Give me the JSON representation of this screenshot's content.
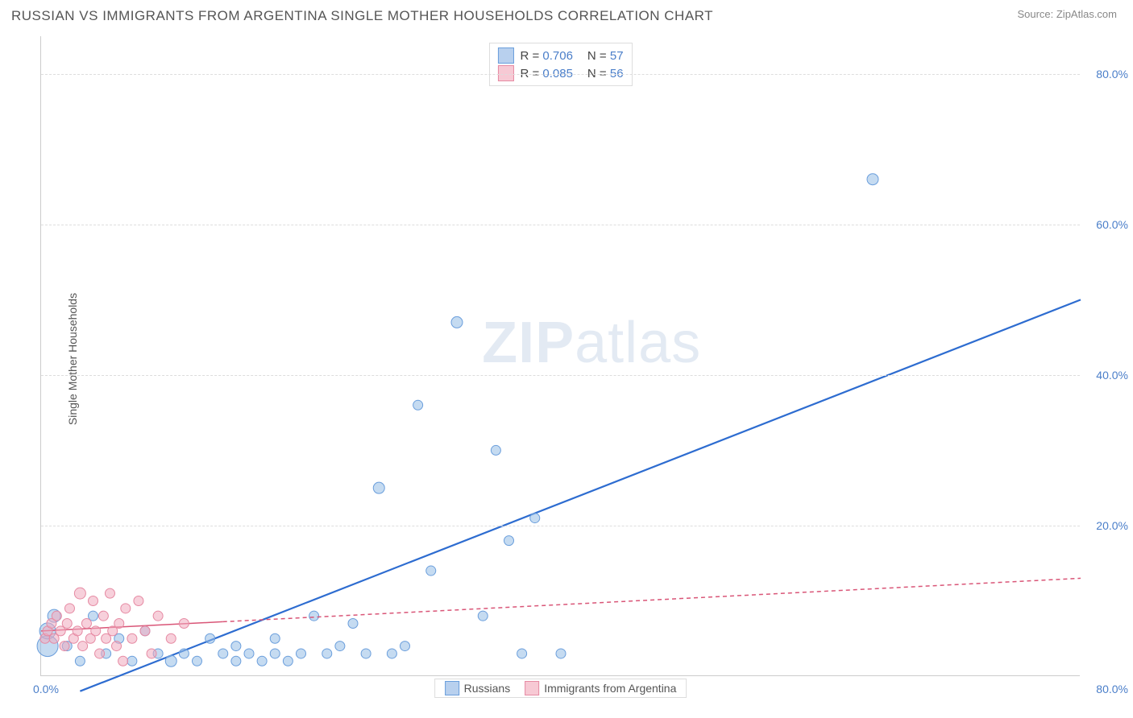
{
  "header": {
    "title": "RUSSIAN VS IMMIGRANTS FROM ARGENTINA SINGLE MOTHER HOUSEHOLDS CORRELATION CHART",
    "source_prefix": "Source: ",
    "source": "ZipAtlas.com"
  },
  "chart": {
    "type": "scatter",
    "ylabel": "Single Mother Households",
    "watermark_bold": "ZIP",
    "watermark_light": "atlas",
    "xlim": [
      0,
      80
    ],
    "ylim": [
      0,
      85
    ],
    "yticks": [
      {
        "value": 20,
        "label": "20.0%"
      },
      {
        "value": 40,
        "label": "40.0%"
      },
      {
        "value": 60,
        "label": "60.0%"
      },
      {
        "value": 80,
        "label": "80.0%"
      }
    ],
    "xtick_left": "0.0%",
    "xtick_right": "80.0%",
    "background_color": "#ffffff",
    "grid_color": "#dddddd",
    "legend_top": [
      {
        "swatch_fill": "#b8d0ee",
        "swatch_border": "#6a9edc",
        "r_label": "R = ",
        "r_value": "0.706",
        "n_label": "N = ",
        "n_value": "57"
      },
      {
        "swatch_fill": "#f7c9d4",
        "swatch_border": "#e68aa3",
        "r_label": "R = ",
        "r_value": "0.085",
        "n_label": "N = ",
        "n_value": "56"
      }
    ],
    "legend_bottom": [
      {
        "swatch_fill": "#b8d0ee",
        "swatch_border": "#6a9edc",
        "label": "Russians"
      },
      {
        "swatch_fill": "#f7c9d4",
        "swatch_border": "#e68aa3",
        "label": "Immigrants from Argentina"
      }
    ],
    "series": [
      {
        "name": "russians",
        "marker_fill": "rgba(150,190,230,0.55)",
        "marker_stroke": "#6a9edc",
        "trend_stroke": "#2d6cd0",
        "trend_width": 2.2,
        "trend_dash": "none",
        "trend_start": {
          "x": 3,
          "y": -2
        },
        "trend_end": {
          "x": 80,
          "y": 50
        },
        "points": [
          {
            "x": 0.5,
            "y": 4,
            "r": 13
          },
          {
            "x": 0.5,
            "y": 6,
            "r": 10
          },
          {
            "x": 1,
            "y": 8,
            "r": 8
          },
          {
            "x": 2,
            "y": 4,
            "r": 6
          },
          {
            "x": 3,
            "y": 2,
            "r": 6
          },
          {
            "x": 4,
            "y": 8,
            "r": 6
          },
          {
            "x": 5,
            "y": 3,
            "r": 6
          },
          {
            "x": 6,
            "y": 5,
            "r": 6
          },
          {
            "x": 7,
            "y": 2,
            "r": 6
          },
          {
            "x": 8,
            "y": 6,
            "r": 6
          },
          {
            "x": 9,
            "y": 3,
            "r": 6
          },
          {
            "x": 10,
            "y": 2,
            "r": 7
          },
          {
            "x": 11,
            "y": 3,
            "r": 6
          },
          {
            "x": 12,
            "y": 2,
            "r": 6
          },
          {
            "x": 13,
            "y": 5,
            "r": 6
          },
          {
            "x": 14,
            "y": 3,
            "r": 6
          },
          {
            "x": 15,
            "y": 2,
            "r": 6
          },
          {
            "x": 15,
            "y": 4,
            "r": 6
          },
          {
            "x": 16,
            "y": 3,
            "r": 6
          },
          {
            "x": 17,
            "y": 2,
            "r": 6
          },
          {
            "x": 18,
            "y": 3,
            "r": 6
          },
          {
            "x": 18,
            "y": 5,
            "r": 6
          },
          {
            "x": 19,
            "y": 2,
            "r": 6
          },
          {
            "x": 20,
            "y": 3,
            "r": 6
          },
          {
            "x": 21,
            "y": 8,
            "r": 6
          },
          {
            "x": 22,
            "y": 3,
            "r": 6
          },
          {
            "x": 23,
            "y": 4,
            "r": 6
          },
          {
            "x": 24,
            "y": 7,
            "r": 6
          },
          {
            "x": 25,
            "y": 3,
            "r": 6
          },
          {
            "x": 26,
            "y": 25,
            "r": 7
          },
          {
            "x": 27,
            "y": 3,
            "r": 6
          },
          {
            "x": 28,
            "y": 4,
            "r": 6
          },
          {
            "x": 29,
            "y": 36,
            "r": 6
          },
          {
            "x": 30,
            "y": 14,
            "r": 6
          },
          {
            "x": 32,
            "y": 47,
            "r": 7
          },
          {
            "x": 34,
            "y": 8,
            "r": 6
          },
          {
            "x": 35,
            "y": 30,
            "r": 6
          },
          {
            "x": 36,
            "y": 18,
            "r": 6
          },
          {
            "x": 37,
            "y": 3,
            "r": 6
          },
          {
            "x": 38,
            "y": 21,
            "r": 6
          },
          {
            "x": 40,
            "y": 3,
            "r": 6
          },
          {
            "x": 64,
            "y": 66,
            "r": 7
          }
        ]
      },
      {
        "name": "argentina",
        "marker_fill": "rgba(240,170,190,0.55)",
        "marker_stroke": "#e68aa3",
        "trend_stroke": "#d95577",
        "trend_width": 1.5,
        "trend_dash": "5,4",
        "trend_solid_end_x": 14,
        "trend_start": {
          "x": 0,
          "y": 6
        },
        "trend_end": {
          "x": 80,
          "y": 13
        },
        "points": [
          {
            "x": 0.3,
            "y": 5,
            "r": 6
          },
          {
            "x": 0.5,
            "y": 6,
            "r": 6
          },
          {
            "x": 0.8,
            "y": 7,
            "r": 6
          },
          {
            "x": 1,
            "y": 5,
            "r": 6
          },
          {
            "x": 1.2,
            "y": 8,
            "r": 6
          },
          {
            "x": 1.5,
            "y": 6,
            "r": 6
          },
          {
            "x": 1.8,
            "y": 4,
            "r": 6
          },
          {
            "x": 2,
            "y": 7,
            "r": 6
          },
          {
            "x": 2.2,
            "y": 9,
            "r": 6
          },
          {
            "x": 2.5,
            "y": 5,
            "r": 6
          },
          {
            "x": 2.8,
            "y": 6,
            "r": 6
          },
          {
            "x": 3,
            "y": 11,
            "r": 7
          },
          {
            "x": 3.2,
            "y": 4,
            "r": 6
          },
          {
            "x": 3.5,
            "y": 7,
            "r": 6
          },
          {
            "x": 3.8,
            "y": 5,
            "r": 6
          },
          {
            "x": 4,
            "y": 10,
            "r": 6
          },
          {
            "x": 4.2,
            "y": 6,
            "r": 6
          },
          {
            "x": 4.5,
            "y": 3,
            "r": 6
          },
          {
            "x": 4.8,
            "y": 8,
            "r": 6
          },
          {
            "x": 5,
            "y": 5,
            "r": 6
          },
          {
            "x": 5.3,
            "y": 11,
            "r": 6
          },
          {
            "x": 5.5,
            "y": 6,
            "r": 6
          },
          {
            "x": 5.8,
            "y": 4,
            "r": 6
          },
          {
            "x": 6,
            "y": 7,
            "r": 6
          },
          {
            "x": 6.3,
            "y": 2,
            "r": 6
          },
          {
            "x": 6.5,
            "y": 9,
            "r": 6
          },
          {
            "x": 7,
            "y": 5,
            "r": 6
          },
          {
            "x": 7.5,
            "y": 10,
            "r": 6
          },
          {
            "x": 8,
            "y": 6,
            "r": 6
          },
          {
            "x": 8.5,
            "y": 3,
            "r": 6
          },
          {
            "x": 9,
            "y": 8,
            "r": 6
          },
          {
            "x": 10,
            "y": 5,
            "r": 6
          },
          {
            "x": 11,
            "y": 7,
            "r": 6
          }
        ]
      }
    ]
  }
}
